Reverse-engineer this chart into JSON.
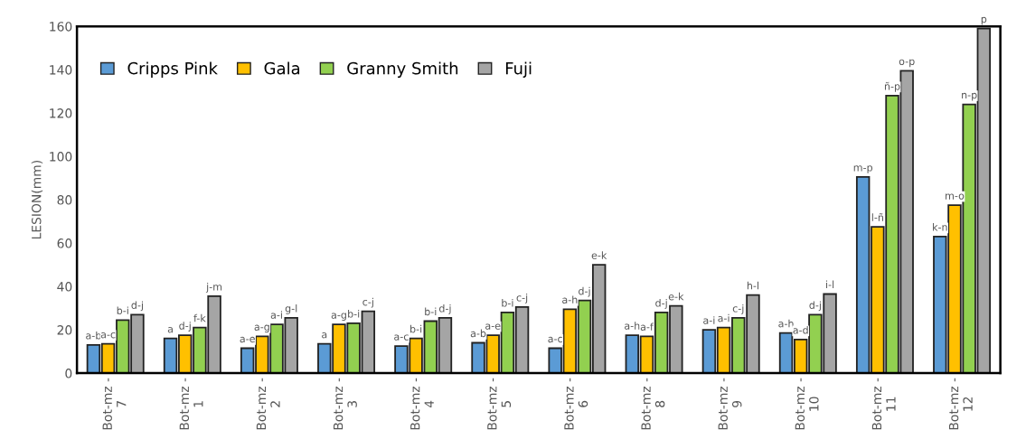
{
  "chart_data": {
    "type": "bar",
    "ylabel": "LESION(mm)",
    "categories": [
      "Bot-mz -\n7",
      "Bot-mz -\n1",
      "Bot-mz -\n2",
      "Bot-mz -\n3",
      "Bot-mz -\n4",
      "Bot-mz -\n5",
      "Bot-mz -\n6",
      "Bot-mz -\n8",
      "Bot-mz -\n9",
      "Bot-mz -\n10",
      "Bot-mz -\n11",
      "Bot-mz -\n12"
    ],
    "series": [
      {
        "name": "Cripps Pink",
        "color": "#5b9bd5",
        "values": [
          13,
          16,
          11.5,
          13.5,
          12.5,
          14,
          11.5,
          17.5,
          20,
          18.5,
          90.5,
          63
        ],
        "value_labels": [
          "a-b",
          "a",
          "a-e",
          "a",
          "a-c",
          "a-b",
          "a-c",
          "a-h",
          "a-i",
          "a-h",
          "m-p",
          "k-n"
        ]
      },
      {
        "name": "Gala",
        "color": "#ffc000",
        "values": [
          13.5,
          17.5,
          17,
          22.5,
          16,
          17.5,
          29.5,
          17,
          21,
          15.5,
          67.5,
          77.5
        ],
        "value_labels": [
          "a-c",
          "d-j",
          "a-g",
          "a-g",
          "b-i",
          "a-e",
          "a-h",
          "a-f",
          "a-i",
          "a-d",
          "l-ñ",
          "m-o"
        ]
      },
      {
        "name": "Granny Smith",
        "color": "#92d050",
        "values": [
          24.5,
          21,
          22.5,
          23,
          24,
          28,
          33.5,
          28,
          25.5,
          27,
          128,
          124
        ],
        "value_labels": [
          "b-i",
          "f-k",
          "a-i",
          "b-i",
          "b-i",
          "b-i",
          "d-j",
          "d-j",
          "c-j",
          "d-j",
          "ñ-p",
          "n-p"
        ]
      },
      {
        "name": "Fuji",
        "color": "#a5a5a5",
        "values": [
          27,
          35.5,
          25.5,
          28.5,
          25.5,
          30.5,
          50,
          31,
          36,
          36.5,
          139.5,
          159
        ],
        "value_labels": [
          "d-j",
          "j-m",
          "g-l",
          "c-j",
          "d-j",
          "c-j",
          "e-k",
          "e-k",
          "h-l",
          "i-l",
          "o-p",
          "p"
        ]
      }
    ],
    "ylim": [
      0,
      160
    ],
    "yticks": [
      0,
      20,
      40,
      60,
      80,
      100,
      120,
      140,
      160
    ],
    "grid": false,
    "legend": "top left"
  }
}
